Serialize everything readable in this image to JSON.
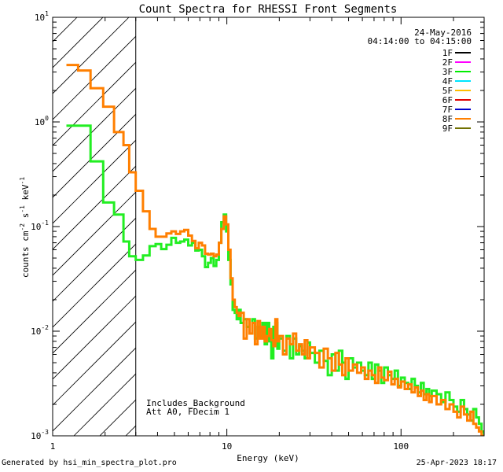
{
  "chart_data": {
    "type": "line",
    "title": "Count Spectra for RHESSI Front Segments",
    "xlabel": "Energy (keV)",
    "ylabel": "counts cm-2 s-1 keV-1",
    "xscale": "log",
    "yscale": "log",
    "xlim": [
      1,
      300
    ],
    "ylim": [
      0.001,
      10
    ],
    "x_ticks": [
      {
        "value": 1,
        "label": "1"
      },
      {
        "value": 10,
        "label": "10"
      },
      {
        "value": 100,
        "label": "100"
      }
    ],
    "y_ticks": [
      {
        "value": 10,
        "base": "10",
        "exp": "1"
      },
      {
        "value": 1,
        "base": "10",
        "exp": "0"
      },
      {
        "value": 0.1,
        "base": "10",
        "exp": "-1"
      },
      {
        "value": 0.01,
        "base": "10",
        "exp": "-2"
      },
      {
        "value": 0.001,
        "base": "10",
        "exp": "-3"
      }
    ],
    "date": "24-May-2016",
    "time_range": "04:14:00 to 04:15:00",
    "legend": [
      {
        "name": "1F",
        "color": "#000000"
      },
      {
        "name": "2F",
        "color": "#ff00ff"
      },
      {
        "name": "3F",
        "color": "#00ee00"
      },
      {
        "name": "4F",
        "color": "#00e5ff"
      },
      {
        "name": "5F",
        "color": "#ffbe00"
      },
      {
        "name": "6F",
        "color": "#e00000"
      },
      {
        "name": "7F",
        "color": "#0000cc"
      },
      {
        "name": "8F",
        "color": "#ff7f00"
      },
      {
        "name": "9F",
        "color": "#707000"
      }
    ],
    "attenuator_cutoff_kev": 3,
    "annotations": [
      "Includes_Background",
      "Att A0, FDecim 1"
    ],
    "series": [
      {
        "name": "3F",
        "color": "#22ee22",
        "x": [
          1.2,
          1.4,
          1.65,
          1.95,
          2.25,
          2.55,
          2.75,
          3.0,
          3.3,
          3.6,
          3.9,
          4.2,
          4.5,
          4.8,
          5.1,
          5.4,
          5.7,
          6.0,
          6.3,
          6.6,
          6.9,
          7.2,
          7.5,
          7.8,
          8.1,
          8.4,
          8.7,
          9.0,
          9.3,
          9.6,
          9.9,
          10.2,
          10.5,
          10.8,
          11.1,
          11.4,
          11.7,
          12.0,
          12.5,
          13.0,
          13.5,
          14.0,
          14.5,
          15.0,
          15.5,
          16.0,
          16.5,
          17.0,
          17.5,
          18.0,
          18.5,
          19.0,
          19.5,
          20.0,
          21.0,
          22.0,
          23.0,
          24.0,
          25.0,
          26.0,
          27.0,
          28.0,
          29.0,
          30.0,
          32.0,
          34.0,
          36.0,
          38.0,
          40.0,
          42.0,
          44.0,
          46.0,
          48.0,
          50.0,
          53.0,
          56.0,
          59.0,
          62.0,
          65.0,
          68.0,
          71.0,
          74.0,
          77.0,
          80.0,
          84.0,
          88.0,
          92.0,
          96.0,
          100.0,
          105.0,
          110.0,
          115.0,
          120.0,
          125.0,
          130.0,
          135.0,
          140.0,
          145.0,
          150.0,
          160.0,
          170.0,
          180.0,
          190.0,
          200.0,
          210.0,
          220.0,
          230.0,
          240.0,
          250.0,
          260.0,
          270.0,
          280.0,
          290.0,
          300.0
        ],
        "y": [
          0.92,
          0.92,
          0.42,
          0.17,
          0.13,
          0.072,
          0.052,
          0.048,
          0.053,
          0.065,
          0.068,
          0.061,
          0.067,
          0.078,
          0.07,
          0.072,
          0.075,
          0.066,
          0.07,
          0.059,
          0.06,
          0.052,
          0.041,
          0.045,
          0.05,
          0.042,
          0.048,
          0.07,
          0.11,
          0.13,
          0.09,
          0.048,
          0.028,
          0.016,
          0.015,
          0.013,
          0.016,
          0.012,
          0.013,
          0.011,
          0.0095,
          0.013,
          0.0085,
          0.011,
          0.009,
          0.012,
          0.0075,
          0.012,
          0.008,
          0.0055,
          0.011,
          0.012,
          0.0068,
          0.0085,
          0.0065,
          0.009,
          0.0055,
          0.0085,
          0.006,
          0.0072,
          0.0065,
          0.0055,
          0.0078,
          0.0062,
          0.005,
          0.0065,
          0.0052,
          0.0038,
          0.006,
          0.0042,
          0.0065,
          0.005,
          0.0035,
          0.0055,
          0.0045,
          0.005,
          0.0042,
          0.0038,
          0.005,
          0.0035,
          0.0048,
          0.0042,
          0.0032,
          0.0045,
          0.0038,
          0.0035,
          0.0042,
          0.003,
          0.0036,
          0.0032,
          0.0028,
          0.0035,
          0.003,
          0.0026,
          0.0032,
          0.0025,
          0.0028,
          0.0024,
          0.0027,
          0.0025,
          0.0021,
          0.0026,
          0.0022,
          0.0019,
          0.0017,
          0.0022,
          0.0018,
          0.0016,
          0.0014,
          0.0018,
          0.0015,
          0.0013,
          0.0011,
          0.001
        ]
      },
      {
        "name": "8F",
        "color": "#ff7f00",
        "x": [
          1.2,
          1.4,
          1.65,
          1.95,
          2.25,
          2.55,
          2.75,
          3.0,
          3.3,
          3.6,
          3.9,
          4.2,
          4.5,
          4.8,
          5.1,
          5.4,
          5.7,
          6.0,
          6.3,
          6.6,
          6.9,
          7.2,
          7.5,
          7.8,
          8.1,
          8.4,
          8.7,
          9.0,
          9.3,
          9.6,
          9.9,
          10.2,
          10.5,
          10.8,
          11.1,
          11.4,
          11.7,
          12.0,
          12.5,
          13.0,
          13.5,
          14.0,
          14.5,
          15.0,
          15.5,
          16.0,
          16.5,
          17.0,
          17.5,
          18.0,
          18.5,
          19.0,
          19.5,
          20.0,
          21.0,
          22.0,
          23.0,
          24.0,
          25.0,
          26.0,
          27.0,
          28.0,
          29.0,
          30.0,
          32.0,
          34.0,
          36.0,
          38.0,
          40.0,
          42.0,
          44.0,
          46.0,
          48.0,
          50.0,
          53.0,
          56.0,
          59.0,
          62.0,
          65.0,
          68.0,
          71.0,
          74.0,
          77.0,
          80.0,
          84.0,
          88.0,
          92.0,
          96.0,
          100.0,
          105.0,
          110.0,
          115.0,
          120.0,
          125.0,
          130.0,
          135.0,
          140.0,
          145.0,
          150.0,
          160.0,
          170.0,
          180.0,
          190.0,
          200.0,
          210.0,
          220.0,
          230.0,
          240.0,
          250.0,
          260.0,
          270.0,
          280.0,
          290.0,
          300.0
        ],
        "y": [
          3.5,
          3.1,
          2.1,
          1.4,
          0.8,
          0.6,
          0.33,
          0.22,
          0.14,
          0.095,
          0.08,
          0.08,
          0.086,
          0.09,
          0.085,
          0.09,
          0.093,
          0.082,
          0.073,
          0.062,
          0.07,
          0.066,
          0.055,
          0.054,
          0.055,
          0.052,
          0.054,
          0.07,
          0.095,
          0.125,
          0.105,
          0.06,
          0.032,
          0.02,
          0.017,
          0.015,
          0.014,
          0.015,
          0.0085,
          0.013,
          0.0095,
          0.012,
          0.0075,
          0.0125,
          0.0085,
          0.011,
          0.008,
          0.009,
          0.0105,
          0.0082,
          0.0072,
          0.013,
          0.008,
          0.009,
          0.006,
          0.0085,
          0.0075,
          0.0095,
          0.0065,
          0.0075,
          0.006,
          0.0082,
          0.0055,
          0.007,
          0.0062,
          0.0045,
          0.0068,
          0.0055,
          0.0042,
          0.0062,
          0.0048,
          0.0038,
          0.0055,
          0.0042,
          0.0048,
          0.004,
          0.0045,
          0.0035,
          0.0042,
          0.0038,
          0.0032,
          0.0045,
          0.0036,
          0.0034,
          0.0041,
          0.0031,
          0.0035,
          0.0029,
          0.0033,
          0.0028,
          0.0031,
          0.0026,
          0.0029,
          0.0024,
          0.0027,
          0.0022,
          0.0025,
          0.0021,
          0.0024,
          0.002,
          0.0022,
          0.0018,
          0.002,
          0.0017,
          0.0015,
          0.0019,
          0.0016,
          0.0014,
          0.0017,
          0.0013,
          0.0012,
          0.0011,
          0.001,
          0.001
        ]
      }
    ]
  },
  "footer": {
    "generated_by": "Generated by hsi_min_spectra_plot.pro",
    "timestamp": "25-Apr-2023 18:17"
  }
}
